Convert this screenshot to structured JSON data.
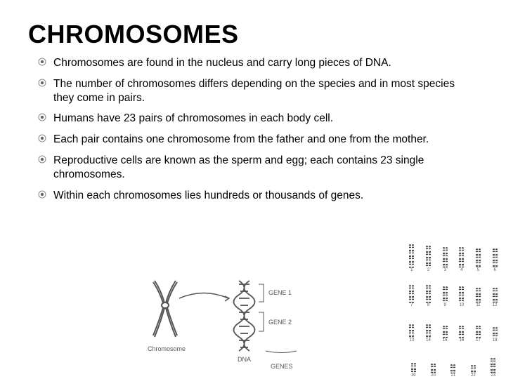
{
  "title": "CHROMOSOMES",
  "title_color": "#000000",
  "text_color": "#000000",
  "background_color": "#ffffff",
  "bullet_marker": {
    "type": "concentric-circle",
    "outer_stroke": "#888888",
    "inner_fill": "#666666"
  },
  "bullets": [
    "Chromosomes are found in the nucleus and carry long pieces of DNA.",
    "The number of chromosomes differs depending on the species and in most species they come in pairs.",
    "Humans have 23 pairs of chromosomes in each body cell.",
    "Each pair contains one chromosome from the father and one from the mother.",
    "Reproductive cells are known as the sperm and egg; each contains 23 single chromosomes.",
    " Within each chromosomes lies hundreds or thousands of genes."
  ],
  "figure": {
    "chromosome_label": "Chromosome",
    "dna_label": "DNA",
    "gene1_label": "GENE 1",
    "gene2_label": "GENE 2",
    "genes_label": "GENES",
    "stroke": "#555555",
    "label_color": "#555555",
    "label_fontsize": 9
  },
  "karyotype": {
    "rows": 4,
    "pairs_per_row": [
      6,
      6,
      6,
      5
    ],
    "heights": [
      [
        34,
        32,
        30,
        30,
        28,
        28
      ],
      [
        26,
        26,
        24,
        24,
        22,
        22
      ],
      [
        20,
        20,
        18,
        18,
        18,
        16
      ],
      [
        15,
        14,
        13,
        12,
        22
      ]
    ],
    "band_colors": [
      "#555555",
      "#cccccc",
      "#333333",
      "#eeeeee"
    ]
  }
}
